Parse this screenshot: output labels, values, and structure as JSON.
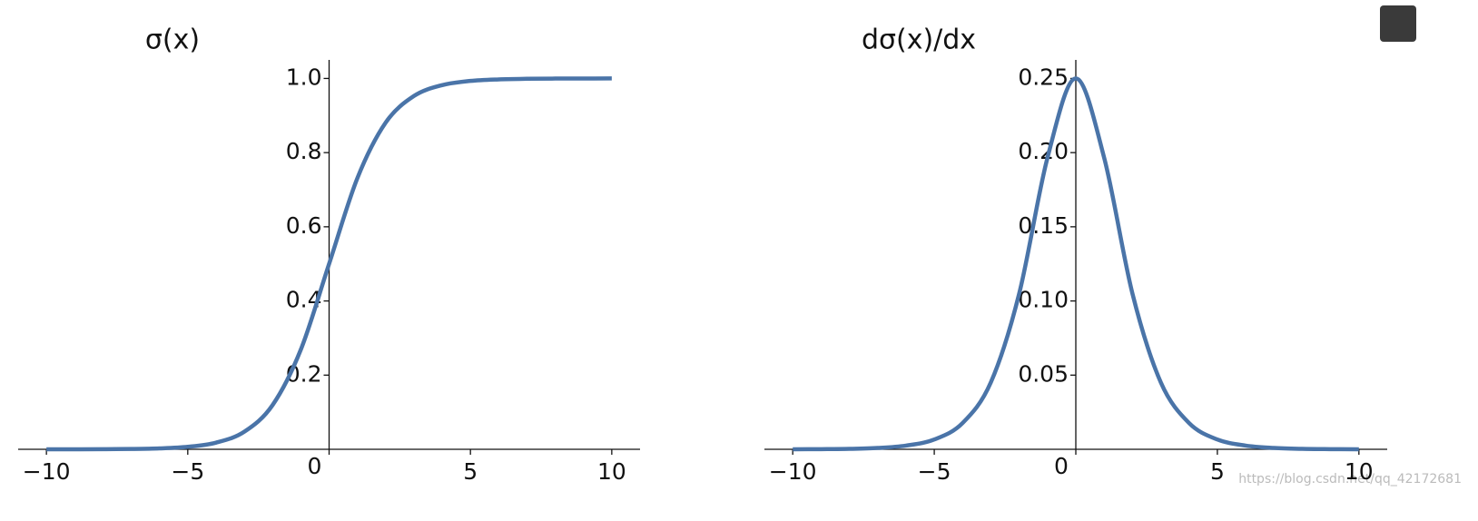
{
  "chart_data": [
    {
      "type": "line",
      "title": "σ(x)",
      "color": "#4a74a8",
      "x": [
        -10,
        -9,
        -8,
        -7,
        -6,
        -5,
        -4,
        -3,
        -2,
        -1,
        0,
        1,
        2,
        3,
        4,
        5,
        6,
        7,
        8,
        9,
        10
      ],
      "values": [
        0.0,
        0.0001,
        0.0003,
        0.0009,
        0.0025,
        0.0067,
        0.018,
        0.0474,
        0.1192,
        0.2689,
        0.5,
        0.7311,
        0.8808,
        0.9526,
        0.982,
        0.9933,
        0.9975,
        0.9991,
        0.9997,
        0.9999,
        1.0
      ],
      "xlim": [
        -11,
        11
      ],
      "ylim": [
        0,
        1.05
      ],
      "xticks": [
        {
          "value": -10,
          "label": "−10"
        },
        {
          "value": -5,
          "label": "−5"
        },
        0,
        5,
        10
      ],
      "yticks": [
        0.2,
        0.4,
        0.6,
        0.8,
        {
          "value": 1,
          "label": "1.0"
        }
      ]
    },
    {
      "type": "line",
      "title": "dσ(x)/dx",
      "color": "#4a74a8",
      "x": [
        -10,
        -9,
        -8,
        -7,
        -6,
        -5,
        -4,
        -3,
        -2,
        -1,
        0,
        1,
        2,
        3,
        4,
        5,
        6,
        7,
        8,
        9,
        10
      ],
      "values": [
        0.0,
        0.0001,
        0.0003,
        0.0009,
        0.0025,
        0.0066,
        0.0177,
        0.0452,
        0.105,
        0.1966,
        0.25,
        0.1966,
        0.105,
        0.0452,
        0.0177,
        0.0066,
        0.0025,
        0.0009,
        0.0003,
        0.0001,
        0.0
      ],
      "xlim": [
        -11,
        11
      ],
      "ylim": [
        0,
        0.2625
      ],
      "xticks": [
        {
          "value": -10,
          "label": "−10"
        },
        {
          "value": -5,
          "label": "−5"
        },
        0,
        5,
        10
      ],
      "yticks": [
        0.05,
        {
          "value": 0.1,
          "label": "0.10"
        },
        0.15,
        {
          "value": 0.2,
          "label": "0.20"
        },
        0.25
      ]
    }
  ],
  "watermark": "https://blog.csdn.net/qq_42172681"
}
